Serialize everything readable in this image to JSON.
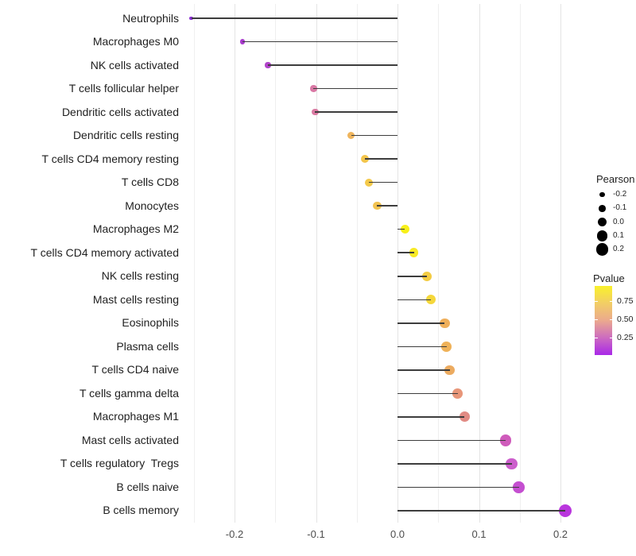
{
  "chart_data": {
    "type": "scatter",
    "variant": "lollipop",
    "title": "",
    "xlabel": "",
    "ylabel": "",
    "categories": [
      "Neutrophils",
      "Macrophages M0",
      "NK cells activated",
      "T cells follicular helper",
      "Dendritic cells activated",
      "Dendritic cells resting",
      "T cells CD4 memory resting",
      "T cells CD8",
      "Monocytes",
      "Macrophages M2",
      "T cells CD4 memory activated",
      "NK cells resting",
      "Mast cells resting",
      "Eosinophils",
      "Plasma cells",
      "T cells CD4 naive",
      "T cells gamma delta",
      "Macrophages M1",
      "Mast cells activated",
      "T cells regulatory  Tregs",
      "B cells naive",
      "B cells memory"
    ],
    "series": [
      {
        "name": "Pearson",
        "values": [
          -0.253,
          -0.19,
          -0.159,
          -0.103,
          -0.101,
          -0.057,
          -0.04,
          -0.035,
          -0.025,
          0.009,
          0.02,
          0.036,
          0.041,
          0.058,
          0.06,
          0.064,
          0.074,
          0.082,
          0.133,
          0.14,
          0.149,
          0.206
        ]
      },
      {
        "name": "Pvalue (estimated from color)",
        "values": [
          0.1,
          0.16,
          0.19,
          0.42,
          0.43,
          0.68,
          0.73,
          0.75,
          0.72,
          0.93,
          0.9,
          0.76,
          0.8,
          0.66,
          0.67,
          0.64,
          0.56,
          0.51,
          0.3,
          0.28,
          0.25,
          0.15
        ]
      }
    ],
    "point_colors": [
      "#8B2FD6",
      "#A93BCF",
      "#B244CB",
      "#D978A4",
      "#DA7AA2",
      "#EFB55D",
      "#F3C54C",
      "#F4C94A",
      "#F2C351",
      "#F8F019",
      "#F8EA25",
      "#F3CC44",
      "#F5D73B",
      "#EFAF5B",
      "#EFB259",
      "#ECAB60",
      "#E89679",
      "#E18B84",
      "#CF5BBB",
      "#CC5ECC",
      "#C44FD0",
      "#B935DD"
    ],
    "xlim": [
      -0.278,
      0.228
    ],
    "x_ticks": [
      -0.2,
      -0.1,
      0.0,
      0.1,
      0.2
    ],
    "x_tick_labels": [
      "-0.2",
      "-0.1",
      "0.0",
      "0.1",
      "0.2"
    ],
    "grid_values": [
      -0.25,
      -0.2,
      -0.15,
      -0.1,
      -0.05,
      0.0,
      0.05,
      0.1,
      0.15,
      0.2
    ],
    "grid": "vertical gridlines every 0.05, no axis lines, white background",
    "legend_position": "right"
  },
  "legend": {
    "size": {
      "title": "Pearson",
      "entries": [
        {
          "label": "-0.2",
          "value": -0.2
        },
        {
          "label": "-0.1",
          "value": -0.1
        },
        {
          "label": "0.0",
          "value": 0.0
        },
        {
          "label": "0.1",
          "value": 0.1
        },
        {
          "label": "0.2",
          "value": 0.2
        }
      ]
    },
    "color": {
      "title": "Pvalue",
      "labels": [
        {
          "text": "0.75",
          "value": 0.75
        },
        {
          "text": "0.50",
          "value": 0.5
        },
        {
          "text": "0.25",
          "value": 0.25
        }
      ],
      "gradient_stops": [
        "#F9F12B",
        "#F2CE65",
        "#EBA98E",
        "#CC6BC0",
        "#A928E8"
      ],
      "scale_min": 0.02,
      "scale_max": 0.95
    }
  },
  "colors": {
    "background": "#ffffff",
    "stem": "#3d3d3d",
    "grid_major": "#e4e4e4",
    "grid_minor": "#efefef",
    "axis_text": "#4d4d4d",
    "label_text": "#1f1f1f"
  }
}
